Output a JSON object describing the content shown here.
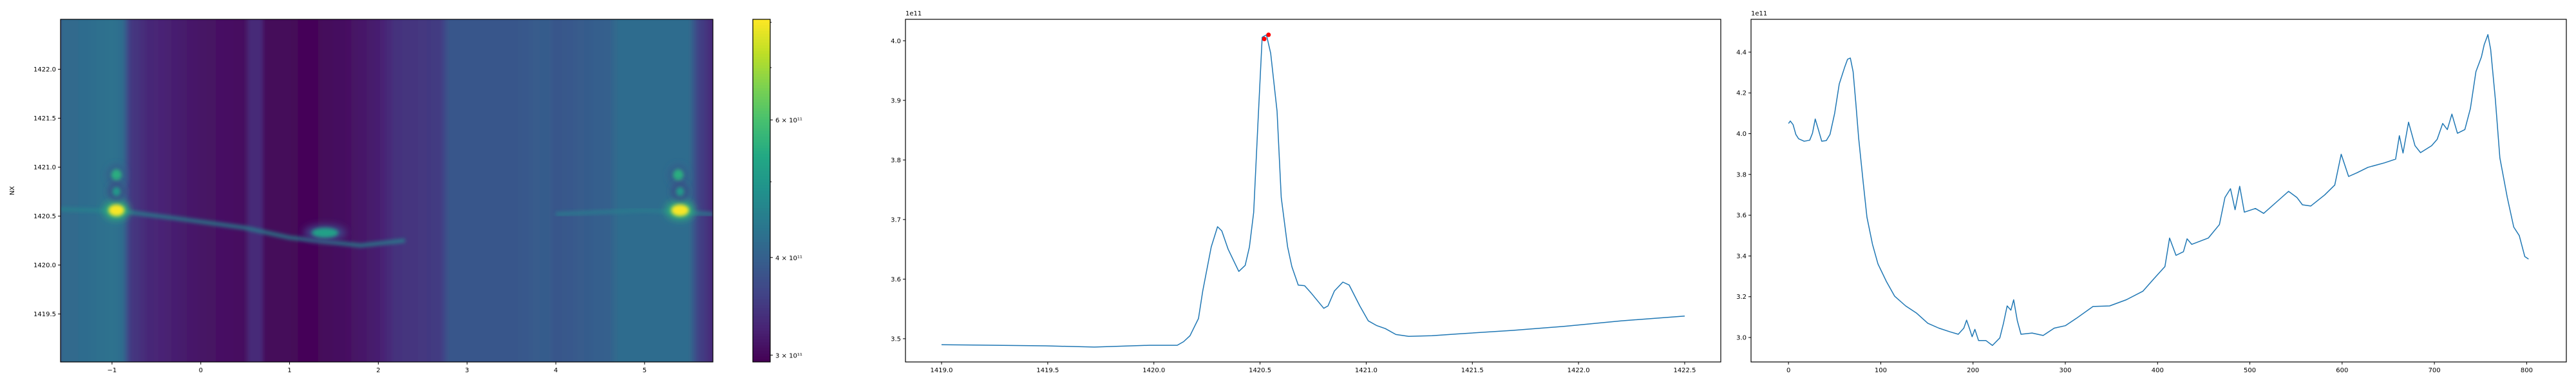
{
  "chart_data": [
    {
      "type": "heatmap",
      "ylabel": "NX",
      "xlim": [
        -1.58,
        5.77
      ],
      "ylim": [
        1419.01,
        1422.51
      ],
      "xticks": {
        "values": [
          -1,
          0,
          1,
          2,
          3,
          4,
          5
        ],
        "labels": [
          "−1",
          "0",
          "1",
          "2",
          "3",
          "4",
          "5"
        ]
      },
      "yticks": {
        "values": [
          1419.5,
          1420.0,
          1420.5,
          1421.0,
          1421.5,
          1422.0
        ],
        "labels": [
          "1419.5",
          "1420.0",
          "1420.5",
          "1421.0",
          "1421.5",
          "1422.0"
        ]
      },
      "colormap": "viridis",
      "color_scale": "log",
      "value_unit_scale": 100000000000.0,
      "colorbar": {
        "range": [
          294000000000.0,
          807000000000.0
        ],
        "ticks": [
          300000000000.0,
          400000000000.0,
          600000000000.0
        ],
        "tick_labels": [
          "3 × 10¹¹",
          "4 × 10¹¹",
          "6 × 10¹¹"
        ],
        "minor_ticks": [
          500000000000.0,
          700000000000.0,
          800000000000.0
        ]
      },
      "column_profile": [
        [
          -1.58,
          4.15
        ],
        [
          -1.3,
          4.2
        ],
        [
          -1.0,
          4.3
        ],
        [
          -0.88,
          4.2
        ],
        [
          -0.8,
          3.5
        ],
        [
          -0.6,
          3.3
        ],
        [
          -0.3,
          3.2
        ],
        [
          0,
          3.1
        ],
        [
          0.5,
          3.05
        ],
        [
          0.55,
          3.3
        ],
        [
          0.68,
          3.3
        ],
        [
          0.72,
          3.0
        ],
        [
          1.3,
          2.98
        ],
        [
          1.6,
          3.05
        ],
        [
          2.0,
          3.2
        ],
        [
          2.2,
          3.4
        ],
        [
          2.7,
          3.5
        ],
        [
          2.8,
          3.85
        ],
        [
          3.5,
          3.85
        ],
        [
          3.9,
          3.95
        ],
        [
          4.0,
          3.85
        ],
        [
          4.6,
          4.0
        ],
        [
          4.7,
          4.2
        ],
        [
          5.5,
          4.2
        ],
        [
          5.6,
          3.6
        ],
        [
          5.77,
          3.3
        ]
      ],
      "streaks": [
        {
          "value": 4.6,
          "points": [
            [
              -1.58,
              1420.57
            ],
            [
              -0.9,
              1420.55
            ],
            [
              -0.3,
              1420.48
            ],
            [
              0.5,
              1420.38
            ],
            [
              1.0,
              1420.28
            ],
            [
              1.8,
              1420.2
            ],
            [
              2.3,
              1420.25
            ]
          ]
        },
        {
          "value": 4.5,
          "points": [
            [
              4.0,
              1420.52
            ],
            [
              5.0,
              1420.56
            ],
            [
              5.77,
              1420.52
            ]
          ]
        }
      ],
      "blobs": [
        {
          "x": -0.95,
          "y": 1420.56,
          "value": 8.0,
          "rx": 0.09,
          "ry": 0.06
        },
        {
          "x": -0.95,
          "y": 1420.92,
          "value": 5.5,
          "rx": 0.06,
          "ry": 0.06
        },
        {
          "x": -0.95,
          "y": 1420.75,
          "value": 5.0,
          "rx": 0.05,
          "ry": 0.05
        },
        {
          "x": 1.4,
          "y": 1420.33,
          "value": 5.2,
          "rx": 0.15,
          "ry": 0.05
        },
        {
          "x": 5.4,
          "y": 1420.56,
          "value": 8.0,
          "rx": 0.1,
          "ry": 0.06
        },
        {
          "x": 5.38,
          "y": 1420.92,
          "value": 5.5,
          "rx": 0.06,
          "ry": 0.06
        },
        {
          "x": 5.4,
          "y": 1420.75,
          "value": 5.0,
          "rx": 0.05,
          "ry": 0.05
        }
      ]
    },
    {
      "type": "line",
      "offset_label": "1e11",
      "xlim": [
        1418.83,
        1422.67
      ],
      "ylim": [
        3.461,
        4.036
      ],
      "xticks": {
        "values": [
          1419.0,
          1419.5,
          1420.0,
          1420.5,
          1421.0,
          1421.5,
          1422.0,
          1422.5
        ],
        "labels": [
          "1419.0",
          "1419.5",
          "1420.0",
          "1420.5",
          "1421.0",
          "1421.5",
          "1422.0",
          "1422.5"
        ]
      },
      "yticks": {
        "values": [
          3.5,
          3.6,
          3.7,
          3.8,
          3.9,
          4.0
        ],
        "labels": [
          "3.5",
          "3.6",
          "3.7",
          "3.8",
          "3.9",
          "4.0"
        ]
      },
      "line_color": "#1f77b4",
      "x": [
        1419.0,
        1419.49,
        1419.72,
        1419.98,
        1420.11,
        1420.14,
        1420.17,
        1420.21,
        1420.23,
        1420.27,
        1420.3,
        1420.32,
        1420.35,
        1420.4,
        1420.43,
        1420.45,
        1420.47,
        1420.49,
        1420.51,
        1420.53,
        1420.55,
        1420.58,
        1420.6,
        1420.63,
        1420.65,
        1420.68,
        1420.71,
        1420.74,
        1420.8,
        1420.82,
        1420.85,
        1420.89,
        1420.92,
        1420.97,
        1421.01,
        1421.05,
        1421.09,
        1421.14,
        1421.2,
        1421.31,
        1421.43,
        1421.69,
        1421.94,
        1422.2,
        1422.5
      ],
      "y": [
        3.49,
        3.488,
        3.486,
        3.489,
        3.489,
        3.495,
        3.505,
        3.534,
        3.58,
        3.654,
        3.688,
        3.681,
        3.65,
        3.613,
        3.623,
        3.654,
        3.712,
        3.861,
        4.006,
        4.01,
        3.979,
        3.882,
        3.737,
        3.654,
        3.621,
        3.59,
        3.589,
        3.577,
        3.551,
        3.555,
        3.58,
        3.595,
        3.59,
        3.555,
        3.53,
        3.522,
        3.517,
        3.507,
        3.504,
        3.505,
        3.508,
        3.514,
        3.521,
        3.53,
        3.538
      ],
      "markers": {
        "color": "#ff0000",
        "points": [
          [
            1420.52,
            4.003
          ],
          [
            1420.54,
            4.01
          ]
        ]
      }
    },
    {
      "type": "line",
      "offset_label": "1e11",
      "xlim": [
        -40.6,
        843
      ],
      "ylim": [
        2.88,
        4.561
      ],
      "xticks": {
        "values": [
          0,
          100,
          200,
          300,
          400,
          500,
          600,
          700,
          800
        ],
        "labels": [
          "0",
          "100",
          "200",
          "300",
          "400",
          "500",
          "600",
          "700",
          "800"
        ]
      },
      "yticks": {
        "values": [
          3.0,
          3.2,
          3.4,
          3.6,
          3.8,
          4.0,
          4.2,
          4.4
        ],
        "labels": [
          "3.0",
          "3.2",
          "3.4",
          "3.6",
          "3.8",
          "4.0",
          "4.2",
          "4.4"
        ]
      },
      "line_color": "#1f77b4",
      "x": [
        0,
        2,
        5,
        8,
        11,
        17,
        23,
        26,
        29,
        32,
        36,
        41,
        45,
        50,
        55,
        61,
        64,
        67,
        70,
        73,
        76,
        81,
        85,
        91,
        97,
        106,
        115,
        127,
        139,
        151,
        163,
        175,
        184,
        190,
        193,
        196,
        199,
        202,
        206,
        214,
        221,
        229,
        233,
        237,
        241,
        244,
        248,
        252,
        264,
        276,
        288,
        300,
        312,
        330,
        348,
        366,
        384,
        396,
        408,
        413,
        420,
        428,
        432,
        437,
        455,
        467,
        473,
        479,
        484,
        489,
        494,
        506,
        515,
        533,
        542,
        551,
        557,
        566,
        581,
        592,
        599,
        607,
        616,
        628,
        646,
        658,
        662,
        666,
        672,
        679,
        685,
        697,
        703,
        709,
        714,
        719,
        725,
        733,
        739,
        745,
        751,
        754,
        758,
        761,
        766,
        771,
        779,
        786,
        792,
        798,
        802
      ],
      "y": [
        4.05,
        4.062,
        4.044,
        3.996,
        3.975,
        3.963,
        3.968,
        4.002,
        4.072,
        4.026,
        3.963,
        3.966,
        3.996,
        4.099,
        4.244,
        4.328,
        4.365,
        4.371,
        4.304,
        4.147,
        3.978,
        3.76,
        3.59,
        3.457,
        3.361,
        3.276,
        3.203,
        3.155,
        3.119,
        3.07,
        3.046,
        3.028,
        3.016,
        3.046,
        3.085,
        3.046,
        3.004,
        3.04,
        2.985,
        2.985,
        2.961,
        2.998,
        3.07,
        3.155,
        3.134,
        3.185,
        3.082,
        3.016,
        3.022,
        3.01,
        3.046,
        3.058,
        3.094,
        3.152,
        3.155,
        3.185,
        3.227,
        3.288,
        3.348,
        3.488,
        3.403,
        3.421,
        3.484,
        3.457,
        3.488,
        3.554,
        3.687,
        3.73,
        3.627,
        3.742,
        3.615,
        3.633,
        3.609,
        3.681,
        3.717,
        3.687,
        3.651,
        3.645,
        3.699,
        3.748,
        3.899,
        3.79,
        3.808,
        3.835,
        3.857,
        3.875,
        3.99,
        3.905,
        4.056,
        3.941,
        3.907,
        3.941,
        3.972,
        4.05,
        4.02,
        4.096,
        4.002,
        4.02,
        4.123,
        4.304,
        4.377,
        4.437,
        4.486,
        4.413,
        4.171,
        3.881,
        3.687,
        3.542,
        3.5,
        3.397,
        3.385
      ]
    }
  ]
}
